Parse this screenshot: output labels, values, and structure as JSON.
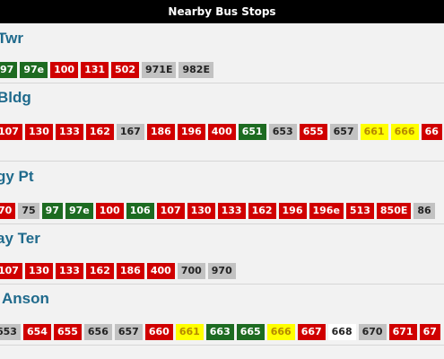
{
  "header": {
    "title": "Nearby Bus Stops"
  },
  "colors": {
    "red": "#d00000",
    "green": "#1d6b21",
    "grey": "#c2c2c2",
    "yellow": "#ffff00",
    "white": "#ffffff",
    "stop_name": "#1f6a8c"
  },
  "stops": [
    {
      "name": "Twr",
      "routes": [
        {
          "label": "97",
          "color": "green"
        },
        {
          "label": "97e",
          "color": "green"
        },
        {
          "label": "100",
          "color": "red"
        },
        {
          "label": "131",
          "color": "red"
        },
        {
          "label": "502",
          "color": "red"
        },
        {
          "label": "971E",
          "color": "grey"
        },
        {
          "label": "982E",
          "color": "grey"
        }
      ]
    },
    {
      "name": "Bldg",
      "routes": [
        {
          "label": "107",
          "color": "red"
        },
        {
          "label": "130",
          "color": "red"
        },
        {
          "label": "133",
          "color": "red"
        },
        {
          "label": "162",
          "color": "red"
        },
        {
          "label": "167",
          "color": "grey"
        },
        {
          "label": "186",
          "color": "red"
        },
        {
          "label": "196",
          "color": "red"
        },
        {
          "label": "400",
          "color": "red"
        },
        {
          "label": "651",
          "color": "green"
        },
        {
          "label": "653",
          "color": "grey"
        },
        {
          "label": "655",
          "color": "red"
        },
        {
          "label": "657",
          "color": "grey"
        },
        {
          "label": "661",
          "color": "yellow"
        },
        {
          "label": "666",
          "color": "yellow"
        },
        {
          "label": "66",
          "color": "red"
        }
      ]
    },
    {
      "name": "gy Pt",
      "routes": [
        {
          "label": "70",
          "color": "red"
        },
        {
          "label": "75",
          "color": "grey"
        },
        {
          "label": "97",
          "color": "green"
        },
        {
          "label": "97e",
          "color": "green"
        },
        {
          "label": "100",
          "color": "red"
        },
        {
          "label": "106",
          "color": "green"
        },
        {
          "label": "107",
          "color": "red"
        },
        {
          "label": "130",
          "color": "red"
        },
        {
          "label": "133",
          "color": "red"
        },
        {
          "label": "162",
          "color": "red"
        },
        {
          "label": "196",
          "color": "red"
        },
        {
          "label": "196e",
          "color": "red"
        },
        {
          "label": "513",
          "color": "red"
        },
        {
          "label": "850E",
          "color": "red"
        },
        {
          "label": "86",
          "color": "grey"
        }
      ]
    },
    {
      "name": "ay Ter",
      "routes": [
        {
          "label": "107",
          "color": "red"
        },
        {
          "label": "130",
          "color": "red"
        },
        {
          "label": "133",
          "color": "red"
        },
        {
          "label": "162",
          "color": "red"
        },
        {
          "label": "186",
          "color": "red"
        },
        {
          "label": "400",
          "color": "red"
        },
        {
          "label": "700",
          "color": "grey"
        },
        {
          "label": "970",
          "color": "grey"
        }
      ]
    },
    {
      "name": "Anson",
      "routes": [
        {
          "label": "653",
          "color": "grey"
        },
        {
          "label": "654",
          "color": "red"
        },
        {
          "label": "655",
          "color": "red"
        },
        {
          "label": "656",
          "color": "grey"
        },
        {
          "label": "657",
          "color": "grey"
        },
        {
          "label": "660",
          "color": "red"
        },
        {
          "label": "661",
          "color": "yellow"
        },
        {
          "label": "663",
          "color": "green"
        },
        {
          "label": "665",
          "color": "green"
        },
        {
          "label": "666",
          "color": "yellow"
        },
        {
          "label": "667",
          "color": "red"
        },
        {
          "label": "668",
          "color": "white"
        },
        {
          "label": "670",
          "color": "grey"
        },
        {
          "label": "671",
          "color": "red"
        },
        {
          "label": "67",
          "color": "red"
        }
      ]
    }
  ]
}
